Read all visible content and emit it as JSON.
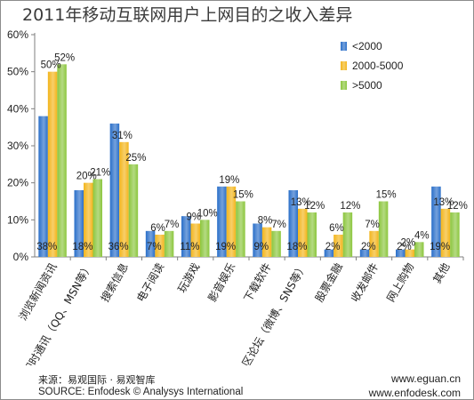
{
  "title": "2011年移动互联网用户上网目的之收入差异",
  "chart_data": {
    "type": "bar",
    "title": "2011年移动互联网用户上网目的之收入差异",
    "xlabel": "",
    "ylabel": "",
    "ylim": [
      0,
      60
    ],
    "yticks": [
      "0%",
      "10%",
      "20%",
      "30%",
      "40%",
      "50%",
      "60%"
    ],
    "grid": false,
    "legend_position": "top-right",
    "categories": [
      "浏览新闻资讯",
      "即时通讯（QQ、MSN等）",
      "搜索信息",
      "电子阅读",
      "玩游戏",
      "影音娱乐",
      "下载软件",
      "社区论坛（微博、SNS等）",
      "股票金融",
      "收发邮件",
      "网上购物",
      "其他"
    ],
    "series": [
      {
        "name": "<2000",
        "color": "#2a6fc9",
        "values": [
          38,
          18,
          36,
          7,
          11,
          19,
          9,
          18,
          2,
          2,
          2,
          19
        ]
      },
      {
        "name": "2000-5000",
        "color": "#f3b51c",
        "values": [
          50,
          20,
          31,
          6,
          9,
          19,
          8,
          13,
          6,
          7,
          2,
          13
        ]
      },
      {
        "name": ">5000",
        "color": "#8cc63e",
        "values": [
          52,
          21,
          25,
          7,
          10,
          15,
          7,
          12,
          12,
          15,
          4,
          12
        ]
      }
    ],
    "data_labels": [
      [
        "38%",
        "18%",
        "36%",
        "7%",
        "11%",
        "19%",
        "9%",
        "18%",
        "2%",
        "2%",
        "2%",
        "19%"
      ],
      [
        "50%",
        "20%",
        "31%",
        "6%",
        "9%",
        "19%",
        "8%",
        "13%",
        "6%",
        "7%",
        "2%",
        "13%"
      ],
      [
        "52%",
        "21%",
        "25%",
        "7%",
        "10%",
        "15%",
        "7%",
        "12%",
        "12%",
        "15%",
        "4%",
        "12%"
      ]
    ]
  },
  "footer": {
    "source_cn": "来源：易观国际 · 易观智库",
    "source_en": "SOURCE: Enfodesk © Analysys International",
    "url1": "www.eguan.cn",
    "url2": "www.enfodesk.com"
  }
}
